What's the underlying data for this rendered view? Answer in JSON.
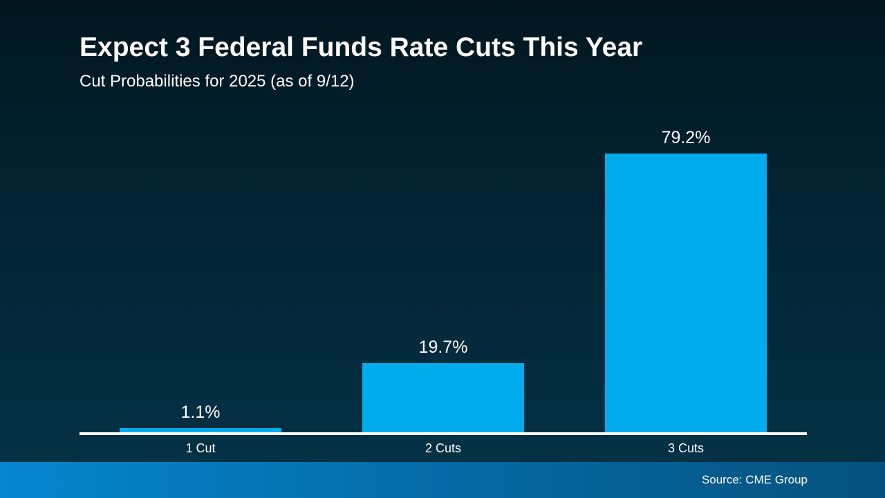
{
  "header": {
    "title": "Expect 3 Federal Funds Rate Cuts This Year",
    "subtitle": "Cut Probabilities for 2025 (as of 9/12)"
  },
  "footer": {
    "source": "Source: CME Group"
  },
  "colors": {
    "bar": "#00ACEC",
    "axis_line": "#FFFFFF",
    "text": "#FFFFFF",
    "background_top": "#021720",
    "background_mid": "#032433",
    "background_bottom": "#053348",
    "footer_left": "#0585CD",
    "footer_right": "#05517D"
  },
  "chart_data": {
    "type": "bar",
    "title": "Expect 3 Federal Funds Rate Cuts This Year",
    "subtitle": "Cut Probabilities for 2025 (as of 9/12)",
    "categories": [
      "1 Cut",
      "2 Cuts",
      "3 Cuts"
    ],
    "values": [
      1.1,
      19.7,
      79.2
    ],
    "value_labels": [
      "1.1%",
      "19.7%",
      "79.2%"
    ],
    "xlabel": "",
    "ylabel": "",
    "ylim": [
      0,
      100
    ],
    "grid": false,
    "legend": false,
    "value_label_position": "above-bar",
    "source": "Source: CME Group"
  }
}
